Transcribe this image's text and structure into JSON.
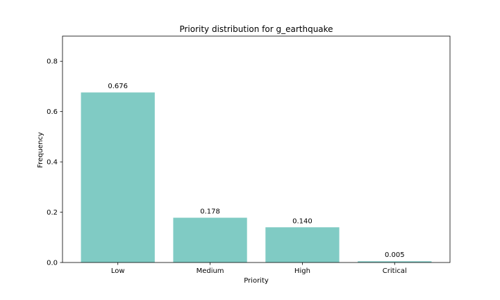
{
  "chart_data": {
    "type": "bar",
    "title": "Priority distribution for g_earthquake",
    "xlabel": "Priority",
    "ylabel": "Frequency",
    "categories": [
      "Low",
      "Medium",
      "High",
      "Critical"
    ],
    "values": [
      0.676,
      0.178,
      0.14,
      0.005
    ],
    "value_labels": [
      "0.676",
      "0.178",
      "0.140",
      "0.005"
    ],
    "ylim": [
      0,
      0.9
    ],
    "yticks": [
      0.0,
      0.2,
      0.4,
      0.6,
      0.8
    ],
    "ytick_labels": [
      "0.0",
      "0.2",
      "0.4",
      "0.6",
      "0.8"
    ],
    "bar_color": "#80cbc4",
    "grid": false,
    "legend": "none"
  }
}
